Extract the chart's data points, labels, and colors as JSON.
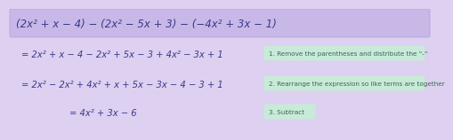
{
  "bg_color": "#ddd0f0",
  "header_bg": "#c8b8e8",
  "header_text": "(2x² + x − 4) − (2x² − 5x + 3) − (−4x² + 3x − 1)",
  "line1_math": "= 2x² + x − 4 − 2x² + 5x − 3 + 4x² − 3x + 1",
  "line2_math": "= 2x² − 2x² + 4x² + x + 5x − 3x − 4 − 3 + 1",
  "line3_math": "= 4x² + 3x − 6",
  "note1": "1. Remove the parentheses and distribute the \"-\"",
  "note2": "2. Rearrange the expression so like terms are together",
  "note3": "3. Subtract",
  "note_bg": "#c8ead8",
  "math_color": "#3a3a8c",
  "note_color": "#3a6a50",
  "header_font_size": 8.5,
  "math_font_size": 7.2,
  "note_font_size": 5.2
}
